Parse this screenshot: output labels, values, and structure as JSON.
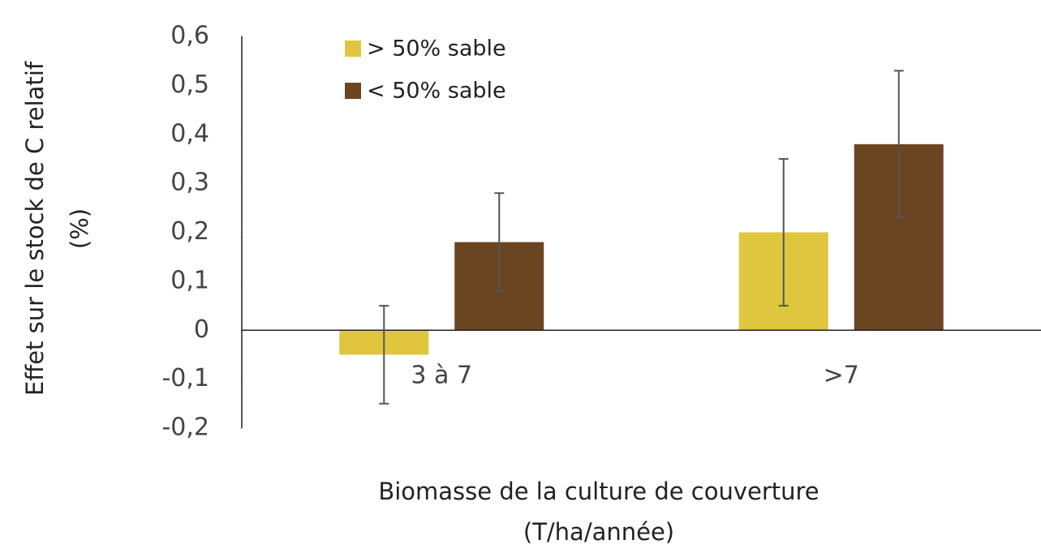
{
  "chart_data": {
    "type": "bar",
    "y_label": [
      "Effet sur le stock de C relatif",
      "(%)"
    ],
    "x_label": [
      "Biomasse de la culture de couverture",
      "(T/ha/année)"
    ],
    "categories": [
      "3 à 7",
      ">7"
    ],
    "series": [
      {
        "name": "> 50% sable",
        "color": "#dfc63e",
        "values": [
          -0.05,
          0.2
        ],
        "errors": [
          0.1,
          0.15
        ]
      },
      {
        "name": "< 50% sable",
        "color": "#6b4522",
        "values": [
          0.18,
          0.38
        ],
        "errors": [
          0.1,
          0.15
        ]
      }
    ],
    "ylim": [
      -0.2,
      0.6
    ],
    "yticks": [
      {
        "value": -0.2,
        "label": "-0,2"
      },
      {
        "value": -0.1,
        "label": "-0,1"
      },
      0,
      {
        "value": 0.1,
        "label": "0,1"
      },
      {
        "value": 0.2,
        "label": "0,2"
      },
      {
        "value": 0.3,
        "label": "0,3"
      },
      {
        "value": 0.4,
        "label": "0,4"
      },
      {
        "value": 0.5,
        "label": "0,5"
      },
      {
        "value": 0.6,
        "label": "0,6"
      }
    ],
    "error_color": "#555",
    "legend": "top-left"
  }
}
